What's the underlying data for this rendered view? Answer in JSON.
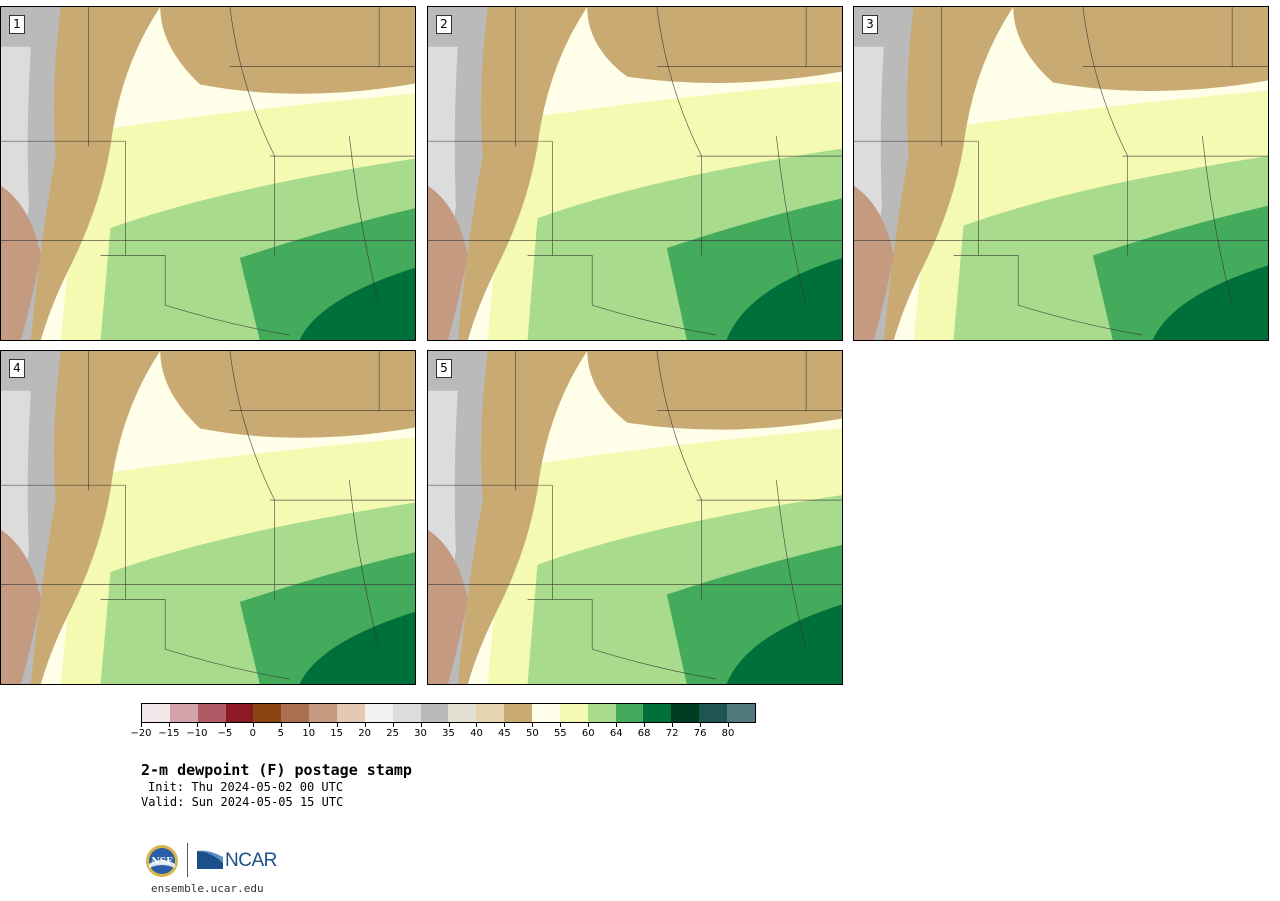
{
  "panels": [
    {
      "label": "1",
      "warm": 0.55
    },
    {
      "label": "2",
      "warm": 0.75
    },
    {
      "label": "3",
      "warm": 0.6
    },
    {
      "label": "4",
      "warm": 0.55
    },
    {
      "label": "5",
      "warm": 0.7
    }
  ],
  "colorbar": {
    "colors": [
      "#f3e6e8",
      "#d3a3ab",
      "#b05a66",
      "#8b1a22",
      "#8b4513",
      "#a87050",
      "#c49a80",
      "#e4c9b4",
      "#f2f2f2",
      "#dcdcdc",
      "#bababa",
      "#e3e0d3",
      "#e4d5ae",
      "#c8aa72",
      "#fffee8",
      "#f5fab2",
      "#a8dc8c",
      "#44aa5c",
      "#00703a",
      "#003c22",
      "#1f5550",
      "#527a7e"
    ],
    "tick_labels": [
      "−20",
      "−15",
      "−10",
      "−5",
      "0",
      "5",
      "10",
      "15",
      "20",
      "25",
      "30",
      "35",
      "40",
      "45",
      "50",
      "55",
      "60",
      "64",
      "68",
      "72",
      "76",
      "80"
    ]
  },
  "title": "2-m dewpoint (F) postage stamp",
  "init": "Init: Thu 2024-05-02 00 UTC",
  "valid": "Valid: Sun 2024-05-05 15 UTC",
  "logo": {
    "nsf": "NSF",
    "ncar": "NCAR"
  },
  "site": "ensemble.ucar.edu"
}
